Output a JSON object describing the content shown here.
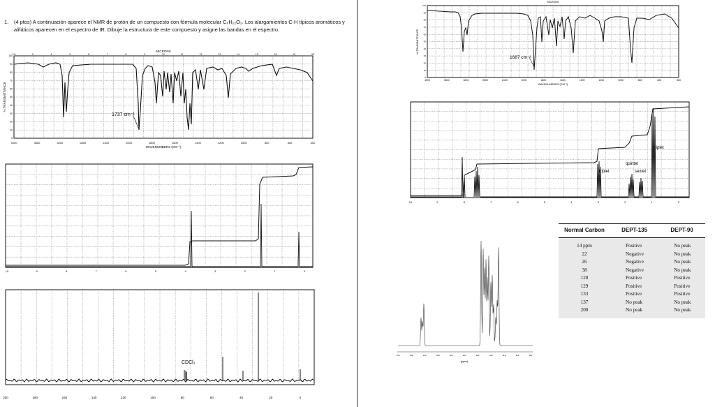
{
  "question": {
    "number": "1.",
    "text": "(4 ptos) A continuación aparece el NMR de protón de un compuesto con fórmula molecular C₆H₁₂O₂. Los alargamientos C-H típicos aromáticos y alifáticos aparecen en el espectro de IR. Dibuje la estructura de este compuesto y asigne las bandas en el espectro."
  },
  "ir1": {
    "top_label": "MICRONS",
    "y_axis_label": "% TRANSMITTANCE",
    "x_axis_label": "WAVENUMBERS (CM⁻¹)",
    "annotation": "1737 cm⁻¹",
    "x_ticks": [
      "4000",
      "3600",
      "3200",
      "2800",
      "2400",
      "2000",
      "1800",
      "1600",
      "1400",
      "1200",
      "1000",
      "800",
      "600",
      "400"
    ],
    "micron_ticks": [
      "2.5",
      "3",
      "4",
      "5",
      "6",
      "7",
      "8",
      "9",
      "10",
      "11",
      "12",
      "13",
      "14",
      "15",
      "16",
      "19",
      "25"
    ],
    "y_ticks": [
      "100",
      "90",
      "80",
      "70",
      "60",
      "50",
      "40",
      "30",
      "20",
      "10",
      "0"
    ]
  },
  "hnmr1": {
    "x_ticks": [
      "10",
      "9",
      "8",
      "7",
      "6",
      "5",
      "4",
      "3",
      "2",
      "1",
      "0"
    ]
  },
  "cnmr1": {
    "annotation": "CDCl₃",
    "x_ticks": [
      "200",
      "180",
      "160",
      "140",
      "120",
      "100",
      "80",
      "60",
      "40",
      "20",
      "0"
    ]
  },
  "ir2": {
    "top_label": "MICRONS",
    "y_axis_label": "% TRANSMITTANCE",
    "x_axis_label": "WAVENUMBERS (CM⁻¹)",
    "annotation": "1687 cm⁻¹",
    "x_ticks": [
      "4000",
      "3600",
      "3200",
      "2800",
      "2400",
      "2000",
      "1800",
      "1600",
      "1400",
      "1200",
      "1000",
      "800",
      "600",
      "400"
    ],
    "y_ticks": [
      "100",
      "90",
      "80",
      "70",
      "60",
      "50",
      "40",
      "30",
      "20",
      "10",
      "0"
    ]
  },
  "hnmr2": {
    "labels": {
      "triplet_a": "triplet",
      "quintet": "quintet",
      "sextet": "sextet",
      "triplet_b": "triplet"
    },
    "x_ticks": [
      "10",
      "9",
      "8",
      "7",
      "6",
      "5",
      "4",
      "3",
      "2",
      "1",
      "0"
    ]
  },
  "cnmr_zoom": {
    "x_label": "(ppm)",
    "x_ticks": [
      "134",
      "132",
      "130",
      "128",
      "126",
      "124",
      "122",
      "120",
      "118",
      "116",
      "114"
    ]
  },
  "dept_table": {
    "headers": [
      "Normal Carbon",
      "DEPT-135",
      "DEPT-90"
    ],
    "rows": [
      [
        "14 ppm",
        "Positive",
        "No peak"
      ],
      [
        "22",
        "Negative",
        "No peak"
      ],
      [
        "26",
        "Negative",
        "No peak"
      ],
      [
        "38",
        "Negative",
        "No peak"
      ],
      [
        "128",
        "Positive",
        "Positive"
      ],
      [
        "129",
        "Positive",
        "Positive"
      ],
      [
        "133",
        "Positive",
        "Positive"
      ],
      [
        "137",
        "No peak",
        "No peak"
      ],
      [
        "200",
        "No peak",
        "No peak"
      ]
    ]
  }
}
